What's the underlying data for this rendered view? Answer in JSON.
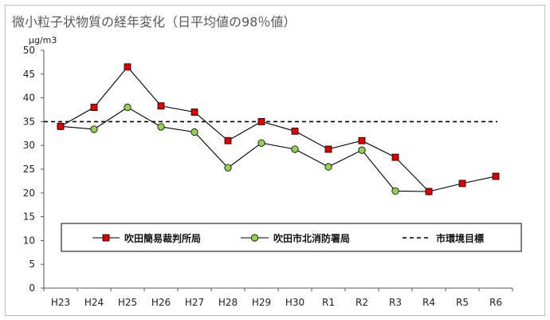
{
  "chart_data": {
    "type": "line",
    "title": "微小粒子状物質の経年変化（日平均値の98％値）",
    "unit_label": "µg/m3",
    "categories": [
      "H23",
      "H24",
      "H25",
      "H26",
      "H27",
      "H28",
      "H29",
      "H30",
      "R1",
      "R2",
      "R3",
      "R4",
      "R5",
      "R6"
    ],
    "ylim": [
      0,
      50
    ],
    "yticks": [
      0,
      5,
      10,
      15,
      20,
      25,
      30,
      35,
      40,
      45,
      50
    ],
    "grid": false,
    "legend_position": "bottom",
    "series": [
      {
        "name": "吹田簡易裁判所局",
        "marker": "square",
        "color": "#e00000",
        "values": [
          34,
          38,
          46.5,
          38.3,
          37,
          31,
          35,
          33,
          29.2,
          31,
          27.5,
          20.3,
          22,
          23.5
        ]
      },
      {
        "name": "吹田市北消防署局",
        "marker": "circle",
        "color": "#92d050",
        "values": [
          34,
          33.4,
          38,
          33.9,
          32.8,
          25.3,
          30.5,
          29.2,
          25.5,
          29,
          20.4,
          20.3,
          null,
          null
        ]
      }
    ],
    "reference_line": {
      "name": "市環境目標",
      "value": 35,
      "style": "dashed"
    }
  }
}
